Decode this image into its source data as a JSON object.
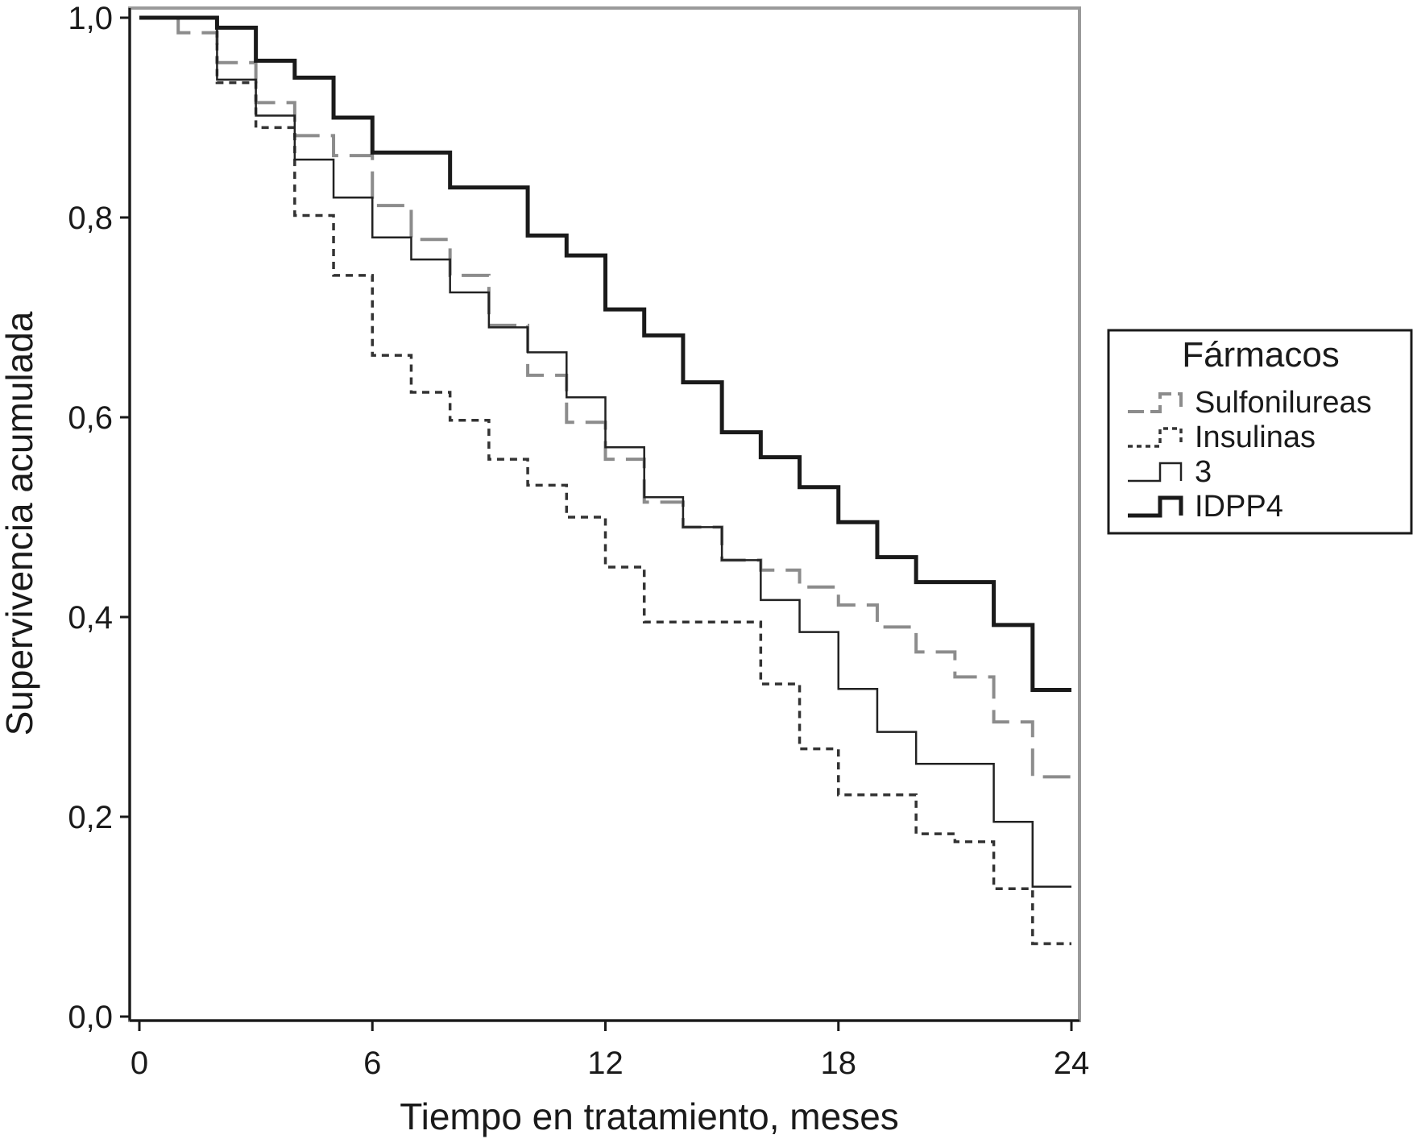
{
  "chart_data": {
    "type": "line",
    "step": true,
    "title": "",
    "xlabel": "Tiempo en tratamiento, meses",
    "ylabel": "Supervivencia acumulada",
    "xlim": [
      0,
      24
    ],
    "ylim": [
      0,
      1
    ],
    "xticks": [
      0,
      6,
      12,
      18,
      24
    ],
    "xtick_labels": [
      "0",
      "6",
      "12",
      "18",
      "24"
    ],
    "yticks": [
      0,
      0.2,
      0.4,
      0.6,
      0.8,
      1.0
    ],
    "ytick_labels": [
      "0,0",
      "0,2",
      "0,4",
      "0,6",
      "0,8",
      "1,0"
    ],
    "grid": false,
    "legend": {
      "title": "Fármacos",
      "position": "right"
    },
    "series": [
      {
        "name": "Sulfonilureas",
        "style": "dashed",
        "color": "#8c8c8c",
        "x": [
          0,
          1,
          2,
          3,
          4,
          5,
          6,
          7,
          8,
          9,
          10,
          11,
          12,
          13,
          14,
          15,
          16,
          17,
          18,
          19,
          20,
          21,
          22,
          23,
          24
        ],
        "y": [
          1.0,
          0.985,
          0.955,
          0.915,
          0.882,
          0.862,
          0.812,
          0.778,
          0.742,
          0.692,
          0.642,
          0.595,
          0.558,
          0.515,
          0.49,
          0.457,
          0.447,
          0.43,
          0.412,
          0.39,
          0.365,
          0.34,
          0.295,
          0.24,
          0.24
        ]
      },
      {
        "name": "Insulinas",
        "style": "dotted",
        "color": "#333333",
        "x": [
          0,
          2,
          3,
          4,
          5,
          6,
          7,
          8,
          9,
          10,
          11,
          12,
          13,
          14,
          15,
          16,
          17,
          18,
          19,
          20,
          21,
          22,
          23,
          24
        ],
        "y": [
          1.0,
          0.935,
          0.89,
          0.802,
          0.742,
          0.662,
          0.625,
          0.597,
          0.558,
          0.532,
          0.5,
          0.45,
          0.395,
          0.395,
          0.395,
          0.333,
          0.268,
          0.222,
          0.222,
          0.183,
          0.175,
          0.128,
          0.073,
          0.073
        ]
      },
      {
        "name": "3",
        "style": "solid-thin",
        "color": "#222222",
        "x": [
          0,
          2,
          3,
          4,
          5,
          6,
          7,
          8,
          9,
          10,
          11,
          12,
          13,
          14,
          15,
          16,
          17,
          18,
          19,
          20,
          21,
          22,
          23,
          24
        ],
        "y": [
          1.0,
          0.938,
          0.902,
          0.858,
          0.82,
          0.78,
          0.758,
          0.725,
          0.69,
          0.665,
          0.62,
          0.57,
          0.52,
          0.49,
          0.457,
          0.417,
          0.385,
          0.328,
          0.285,
          0.253,
          0.253,
          0.195,
          0.13,
          0.13
        ]
      },
      {
        "name": "IDPP4",
        "style": "solid-thick",
        "color": "#1a1a1a",
        "x": [
          0,
          2,
          3,
          4,
          5,
          6,
          7,
          8,
          9,
          10,
          11,
          12,
          13,
          14,
          15,
          16,
          17,
          18,
          19,
          20,
          21,
          22,
          23,
          24
        ],
        "y": [
          1.0,
          0.99,
          0.957,
          0.94,
          0.9,
          0.865,
          0.865,
          0.83,
          0.83,
          0.782,
          0.762,
          0.708,
          0.682,
          0.635,
          0.585,
          0.56,
          0.53,
          0.495,
          0.46,
          0.435,
          0.435,
          0.392,
          0.327,
          0.327
        ]
      }
    ]
  }
}
